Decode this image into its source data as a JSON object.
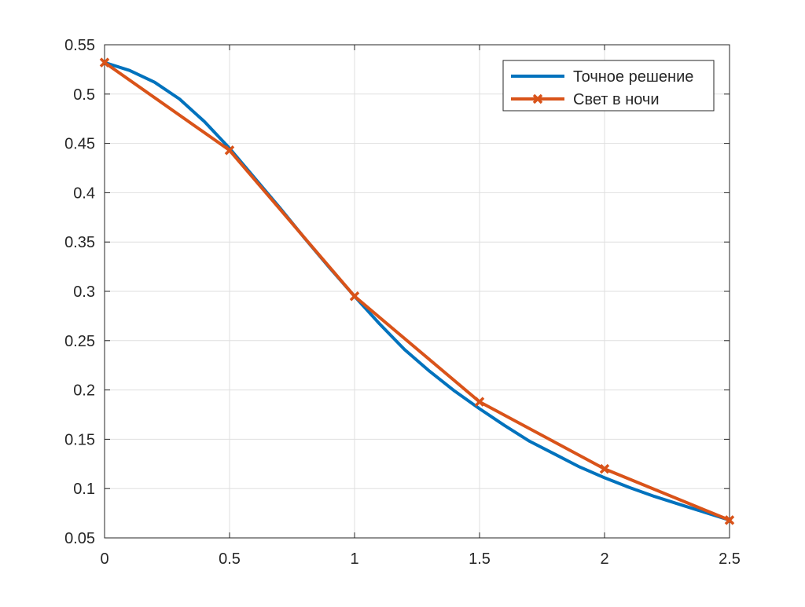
{
  "chart_data": {
    "type": "line",
    "title": "",
    "xlabel": "",
    "ylabel": "",
    "xlim": [
      0,
      2.5
    ],
    "ylim": [
      0.05,
      0.55
    ],
    "xticks": [
      0,
      0.5,
      1,
      1.5,
      2,
      2.5
    ],
    "xtick_labels": [
      "0",
      "0.5",
      "1",
      "1.5",
      "2",
      "2.5"
    ],
    "yticks": [
      0.05,
      0.1,
      0.15,
      0.2,
      0.25,
      0.3,
      0.35,
      0.4,
      0.45,
      0.5,
      0.55
    ],
    "ytick_labels": [
      "0.05",
      "0.1",
      "0.15",
      "0.2",
      "0.25",
      "0.3",
      "0.35",
      "0.4",
      "0.45",
      "0.5",
      "0.55"
    ],
    "grid": true,
    "legend_position": "top-right",
    "series": [
      {
        "name": "Точное решение",
        "color": "#0072BD",
        "marker": "none",
        "x": [
          0,
          0.1,
          0.2,
          0.3,
          0.4,
          0.5,
          0.6,
          0.7,
          0.8,
          0.9,
          1.0,
          1.1,
          1.2,
          1.3,
          1.4,
          1.5,
          1.6,
          1.7,
          1.8,
          1.9,
          2.0,
          2.1,
          2.2,
          2.3,
          2.4,
          2.5
        ],
        "y": [
          0.532,
          0.524,
          0.512,
          0.495,
          0.472,
          0.445,
          0.415,
          0.385,
          0.354,
          0.324,
          0.295,
          0.267,
          0.241,
          0.219,
          0.199,
          0.181,
          0.164,
          0.148,
          0.135,
          0.122,
          0.111,
          0.101,
          0.092,
          0.084,
          0.076,
          0.068
        ]
      },
      {
        "name": "Свет в ночи",
        "color": "#D95319",
        "marker": "x",
        "x": [
          0,
          0.5,
          1.0,
          1.5,
          2.0,
          2.5
        ],
        "y": [
          0.532,
          0.443,
          0.295,
          0.188,
          0.12,
          0.068
        ]
      }
    ]
  }
}
